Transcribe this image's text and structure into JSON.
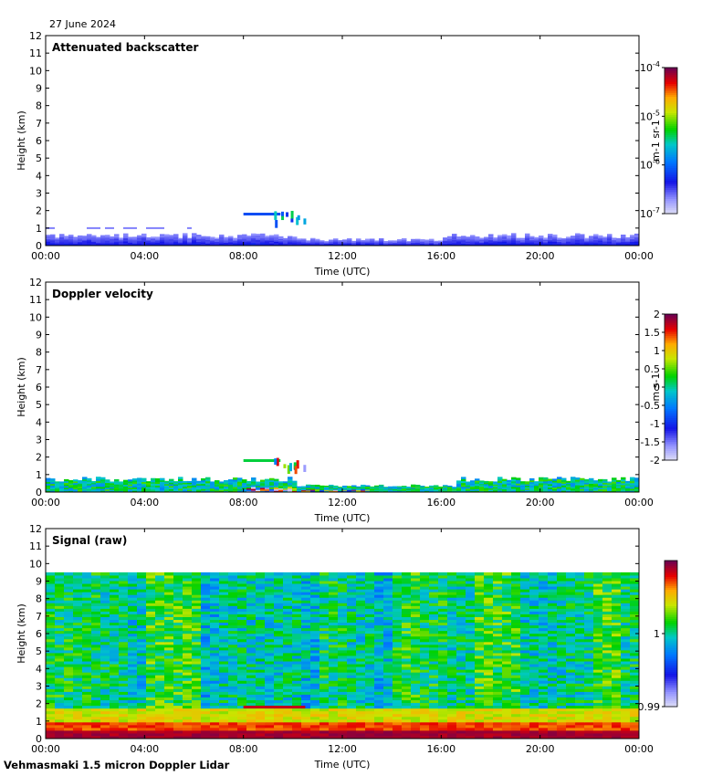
{
  "date": "27 June 2024",
  "footer": "Vehmasmaki 1.5 micron Doppler Lidar",
  "chart_data": [
    {
      "type": "heatmap",
      "title": "Attenuated backscatter",
      "xlabel": "Time (UTC)",
      "ylabel": "Height (km)",
      "x_ticks": [
        "00:00",
        "04:00",
        "08:00",
        "12:00",
        "16:00",
        "20:00",
        "00:00"
      ],
      "y_ticks": [
        "0",
        "1",
        "2",
        "3",
        "4",
        "5",
        "6",
        "7",
        "8",
        "9",
        "10",
        "11",
        "12"
      ],
      "ylim": [
        0,
        12
      ],
      "xlim_hours": [
        0,
        24
      ],
      "colorbar": {
        "scale": "log",
        "range": [
          1e-07,
          0.0001
        ],
        "tick_labels": [
          "10-4",
          "10-5",
          "10-6",
          "10-7"
        ],
        "tick_values": [
          0.0001,
          1e-05,
          1e-06,
          1e-07
        ],
        "unit": "m-1 sr-1"
      },
      "features": {
        "boundary_layer_top_km": 0.6,
        "cloud_layer_km": 1.8,
        "cloud_hours": [
          8.0,
          10.5
        ],
        "signal_ceiling_km": null
      }
    },
    {
      "type": "heatmap",
      "title": "Doppler velocity",
      "xlabel": "Time (UTC)",
      "ylabel": "Height (km)",
      "x_ticks": [
        "00:00",
        "04:00",
        "08:00",
        "12:00",
        "16:00",
        "20:00",
        "00:00"
      ],
      "y_ticks": [
        "0",
        "1",
        "2",
        "3",
        "4",
        "5",
        "6",
        "7",
        "8",
        "9",
        "10",
        "11",
        "12"
      ],
      "ylim": [
        0,
        12
      ],
      "xlim_hours": [
        0,
        24
      ],
      "colorbar": {
        "scale": "linear",
        "range": [
          -2,
          2
        ],
        "tick_labels": [
          "2",
          "1.5",
          "1",
          "0.5",
          "0",
          "-0.5",
          "-1",
          "-1.5",
          "-2"
        ],
        "tick_values": [
          2,
          1.5,
          1,
          0.5,
          0,
          -0.5,
          -1,
          -1.5,
          -2
        ],
        "unit": "m s-1"
      },
      "features": {
        "boundary_layer_top_km": 0.8,
        "cloud_layer_km": 1.8,
        "cloud_hours": [
          8.0,
          10.5
        ],
        "signal_ceiling_km": null
      }
    },
    {
      "type": "heatmap",
      "title": "Signal (raw)",
      "xlabel": "Time (UTC)",
      "ylabel": "Height (km)",
      "x_ticks": [
        "00:00",
        "04:00",
        "08:00",
        "12:00",
        "16:00",
        "20:00",
        "00:00"
      ],
      "y_ticks": [
        "0",
        "1",
        "2",
        "3",
        "4",
        "5",
        "6",
        "7",
        "8",
        "9",
        "10",
        "11",
        "12"
      ],
      "ylim": [
        0,
        12
      ],
      "xlim_hours": [
        0,
        24
      ],
      "colorbar": {
        "scale": "linear",
        "range": [
          0.99,
          1.01
        ],
        "tick_labels": [
          "1",
          "0.99"
        ],
        "tick_values": [
          1,
          0.99
        ],
        "unit": ""
      },
      "features": {
        "boundary_layer_top_km": 1.8,
        "cloud_layer_km": 1.8,
        "cloud_hours": [
          8.0,
          10.5
        ],
        "signal_ceiling_km": 9.5
      }
    }
  ]
}
